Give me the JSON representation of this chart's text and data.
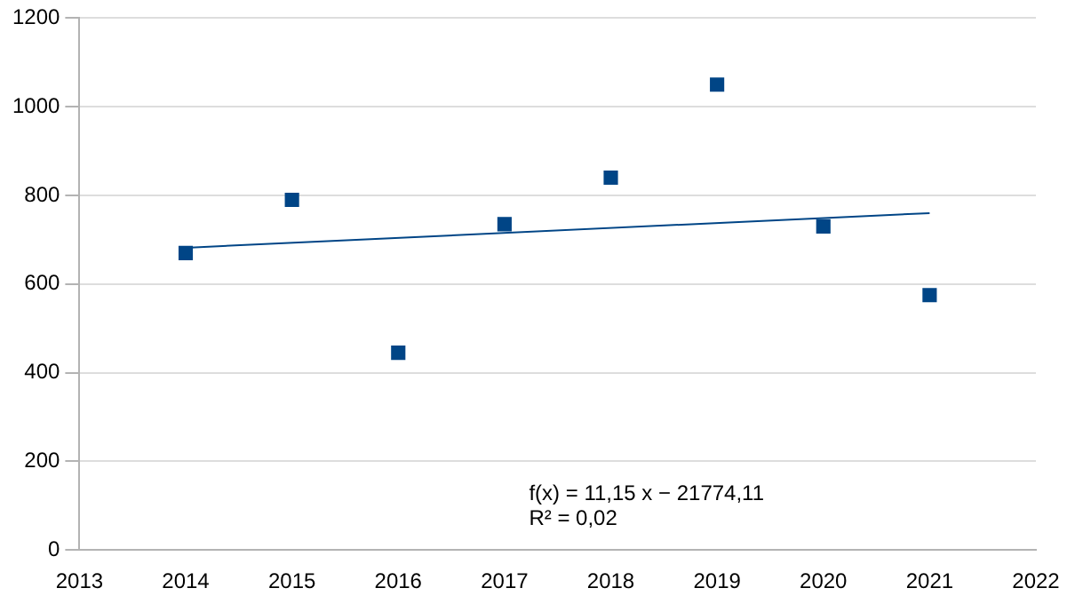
{
  "chart_data": {
    "type": "scatter",
    "x": [
      2014,
      2015,
      2016,
      2017,
      2018,
      2019,
      2020,
      2021
    ],
    "series": [
      {
        "color": "#004586",
        "values": [
          670,
          790,
          445,
          735,
          840,
          1050,
          730,
          575
        ],
        "marker": "square"
      },
      {
        "type": "line",
        "color": "#004586",
        "x": [
          2014,
          2021
        ],
        "values": [
          682,
          760
        ],
        "marker": "none"
      }
    ],
    "xlim": [
      2013,
      2022
    ],
    "xticks": [
      2013,
      2014,
      2015,
      2016,
      2017,
      2018,
      2019,
      2020,
      2021,
      2022
    ],
    "ylim": [
      0,
      1200
    ],
    "yticks": [
      0,
      200,
      400,
      600,
      800,
      1000,
      1200
    ],
    "grid": "y",
    "legend": false,
    "annotations": [
      "f(x) = 11,15 x − 21774,11",
      "R² = 0,02"
    ]
  }
}
